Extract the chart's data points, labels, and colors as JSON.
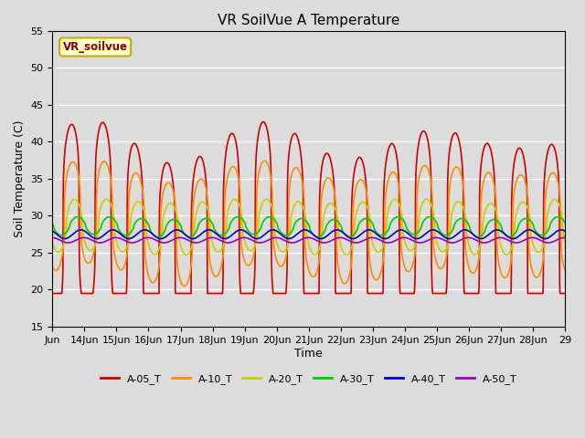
{
  "title": "VR SoilVue A Temperature",
  "ylabel": "Soil Temperature (C)",
  "xlabel": "Time",
  "annotation": "VR_soilvue",
  "ylim": [
    15,
    55
  ],
  "yticks": [
    15,
    20,
    25,
    30,
    35,
    40,
    45,
    50,
    55
  ],
  "background_color": "#dcdcdc",
  "plot_bg_color": "#dcdcdc",
  "series_keys": [
    "A-05_T",
    "A-10_T",
    "A-20_T",
    "A-30_T",
    "A-40_T",
    "A-50_T"
  ],
  "series_colors": [
    "#cc0000",
    "#ff8c00",
    "#cccc00",
    "#00cc00",
    "#0000cc",
    "#9900cc"
  ],
  "series_lw": [
    1.2,
    1.2,
    1.2,
    1.2,
    1.2,
    1.2
  ],
  "xtick_labels": [
    "Jun",
    "14Jun",
    "15Jun",
    "16Jun",
    "17Jun",
    "18Jun",
    "19Jun",
    "20Jun",
    "21Jun",
    "22Jun",
    "23Jun",
    "24Jun",
    "25Jun",
    "26Jun",
    "27Jun",
    "28Jun",
    "29"
  ],
  "num_days": 16,
  "points_per_day": 144,
  "base_05": 27,
  "amp_05": 13,
  "sharp_05": 4,
  "base_10": 29,
  "amp_10": 7,
  "sharp_10": 3,
  "base_20": 28.5,
  "amp_20": 3.5,
  "sharp_20": 2,
  "base_30": 28.5,
  "amp_30": 1.2,
  "sharp_30": 1.5,
  "base_40": 27.5,
  "amp_40": 0.6,
  "sharp_40": 1,
  "base_50": 26.7,
  "amp_50": 0.35,
  "sharp_50": 1
}
